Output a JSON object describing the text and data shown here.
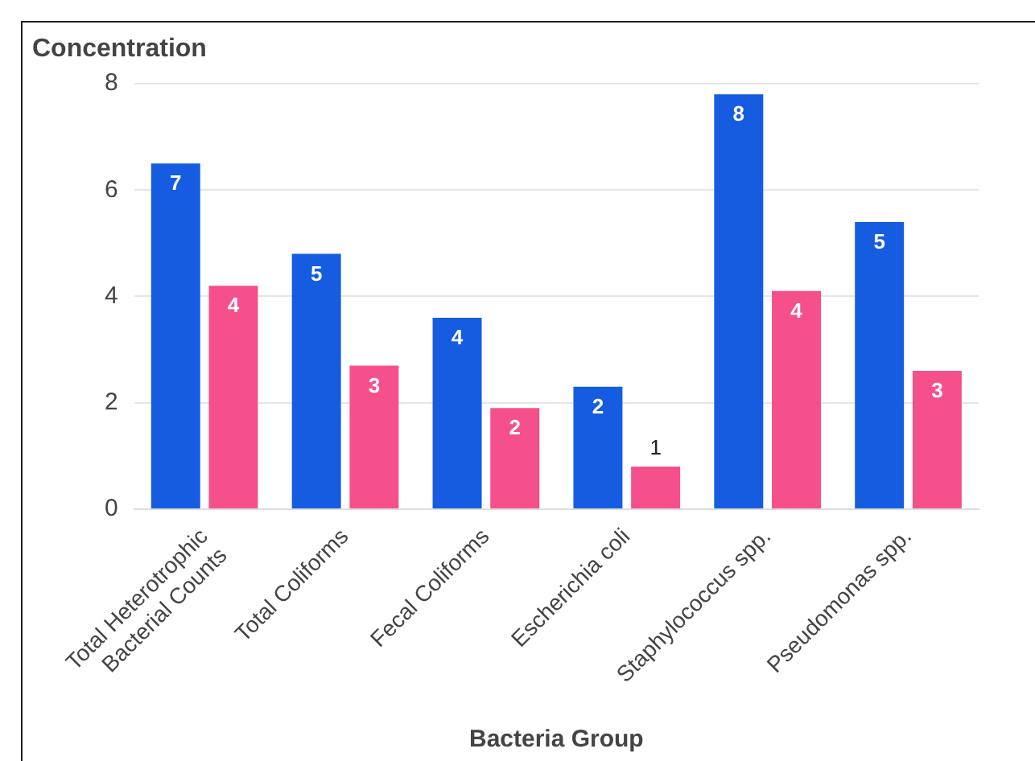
{
  "chart_data": {
    "type": "bar",
    "ylabel": "Concentration",
    "xlabel": "Bacteria Group",
    "categories": [
      "Total Heterotrophic Bacterial Counts",
      "Total Coliforms",
      "Fecal Coliforms",
      "Escherichia coli",
      "Staphylococcus spp.",
      "Pseudomonas spp."
    ],
    "series": [
      {
        "color": "#155ce0",
        "values": [
          6.5,
          4.8,
          3.6,
          2.3,
          7.8,
          5.4
        ],
        "value_labels": [
          "7",
          "5",
          "4",
          "2",
          "8",
          "5"
        ]
      },
      {
        "color": "#f5508b",
        "values": [
          4.2,
          2.7,
          1.9,
          0.8,
          4.1,
          2.6
        ],
        "value_labels": [
          "4",
          "3",
          "2",
          "1",
          "4",
          "3"
        ]
      }
    ],
    "ylim": [
      0,
      8
    ],
    "yticks": [
      0,
      2,
      4,
      6,
      8
    ],
    "grid": "y",
    "legend": false
  }
}
